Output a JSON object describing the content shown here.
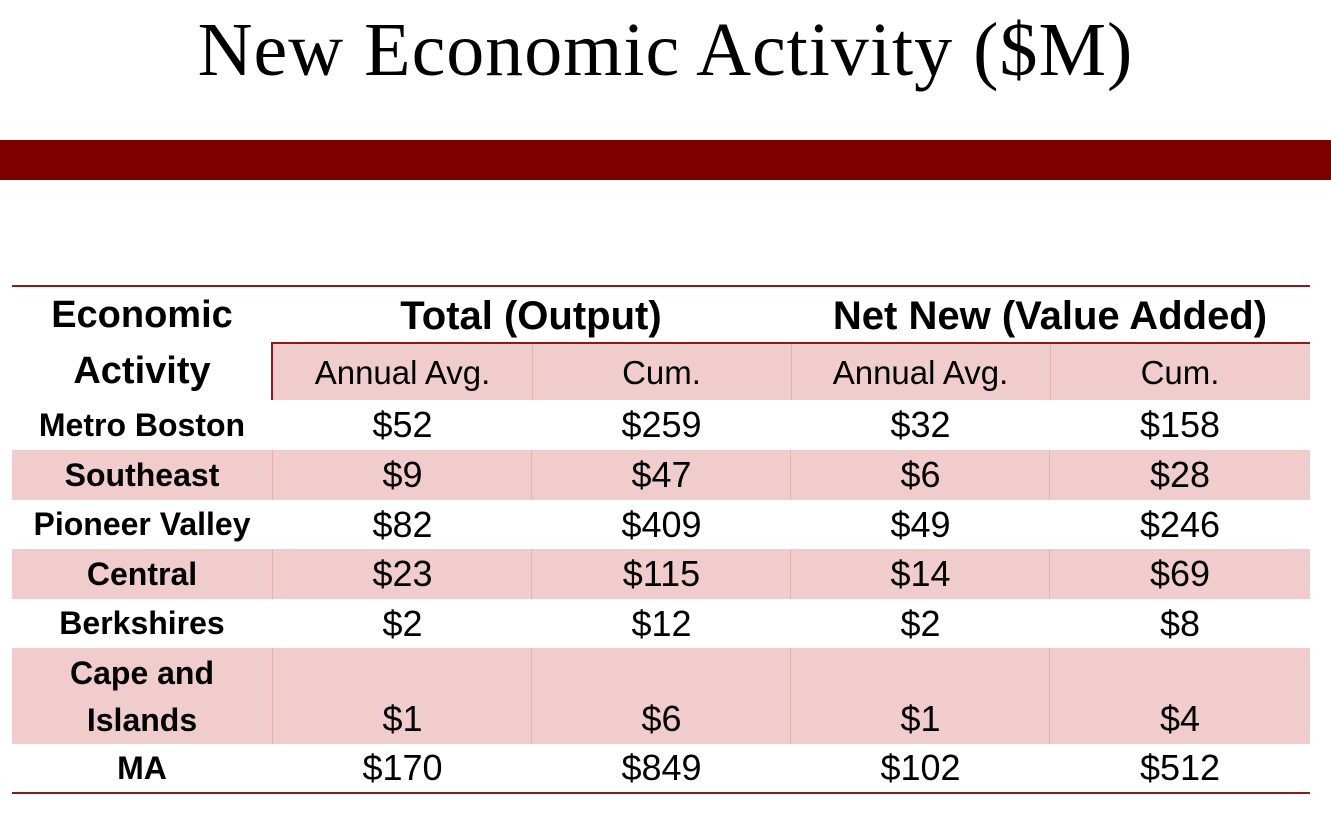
{
  "title": "New Economic Activity ($M)",
  "table": {
    "header": {
      "activity": "Economic Activity",
      "group1": "Total (Output)",
      "group2": "Net New (Value Added)",
      "sub1": "Annual Avg.",
      "sub2": "Cum.",
      "sub3": "Annual Avg.",
      "sub4": "Cum."
    },
    "rows": [
      {
        "region": "Metro Boston",
        "total_avg": "$52",
        "total_cum": "$259",
        "net_avg": "$32",
        "net_cum": "$158"
      },
      {
        "region": "Southeast",
        "total_avg": "$9",
        "total_cum": "$47",
        "net_avg": "$6",
        "net_cum": "$28"
      },
      {
        "region": "Pioneer Valley",
        "total_avg": "$82",
        "total_cum": "$409",
        "net_avg": "$49",
        "net_cum": "$246"
      },
      {
        "region": "Central",
        "total_avg": "$23",
        "total_cum": "$115",
        "net_avg": "$14",
        "net_cum": "$69"
      },
      {
        "region": "Berkshires",
        "total_avg": "$2",
        "total_cum": "$12",
        "net_avg": "$2",
        "net_cum": "$8"
      },
      {
        "region": "Cape and Islands",
        "total_avg": "$1",
        "total_cum": "$6",
        "net_avg": "$1",
        "net_cum": "$4"
      },
      {
        "region": "MA",
        "total_avg": "$170",
        "total_cum": "$849",
        "net_avg": "$102",
        "net_cum": "$512"
      }
    ]
  }
}
